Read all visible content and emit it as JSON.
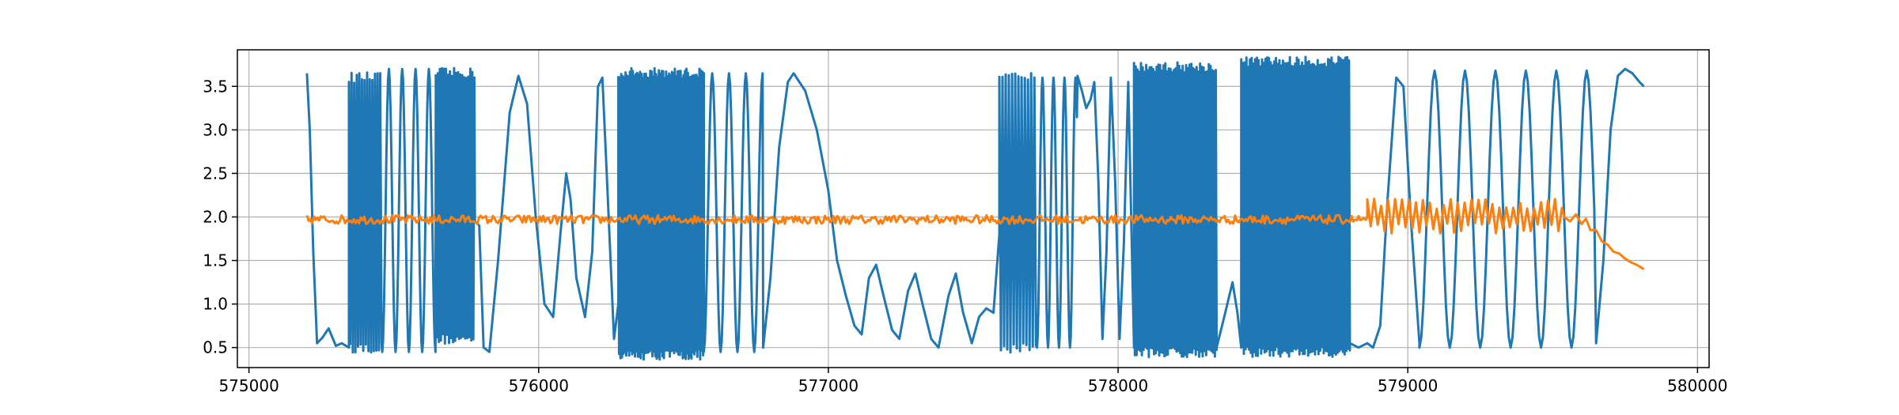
{
  "chart_data": {
    "type": "line",
    "title": "",
    "xlabel": "",
    "ylabel": "",
    "xlim": [
      574960,
      580040
    ],
    "ylim": [
      0.27,
      3.92
    ],
    "grid": true,
    "x_ticks": [
      575000,
      576000,
      577000,
      578000,
      579000,
      580000
    ],
    "x_tick_labels": [
      "575000",
      "576000",
      "577000",
      "578000",
      "579000",
      "580000"
    ],
    "y_ticks": [
      0.5,
      1.0,
      1.5,
      2.0,
      2.5,
      3.0,
      3.5
    ],
    "y_tick_labels": [
      "0.5",
      "1.0",
      "1.5",
      "2.0",
      "2.5",
      "3.0",
      "3.5"
    ],
    "series": [
      {
        "color": "#1f77b4",
        "segments": [
          {
            "kind": "points",
            "points": [
              [
                575200,
                3.65
              ],
              [
                575210,
                3.0
              ],
              [
                575222,
                1.6
              ],
              [
                575235,
                0.55
              ],
              [
                575255,
                0.62
              ],
              [
                575275,
                0.72
              ],
              [
                575300,
                0.52
              ],
              [
                575320,
                0.55
              ],
              [
                575345,
                0.5
              ]
            ]
          },
          {
            "kind": "burst",
            "x0": 575345,
            "x1": 575460,
            "period": 9,
            "low": 0.5,
            "high": 3.6
          },
          {
            "kind": "wave",
            "x0": 575460,
            "x1": 575645,
            "period": 46,
            "low": 0.45,
            "high": 3.7
          },
          {
            "kind": "burst",
            "x0": 575645,
            "x1": 575780,
            "period": 7,
            "low": 0.6,
            "high": 3.65
          },
          {
            "kind": "points",
            "points": [
              [
                575780,
                1.95
              ],
              [
                575795,
                1.9
              ],
              [
                575810,
                0.5
              ],
              [
                575830,
                0.45
              ],
              [
                575860,
                1.5
              ],
              [
                575900,
                3.2
              ],
              [
                575930,
                3.62
              ],
              [
                575960,
                3.3
              ],
              [
                575990,
                2.0
              ],
              [
                576020,
                1.0
              ],
              [
                576050,
                0.85
              ],
              [
                576075,
                1.8
              ],
              [
                576095,
                2.5
              ],
              [
                576110,
                2.2
              ],
              [
                576130,
                1.3
              ],
              [
                576160,
                0.85
              ],
              [
                576185,
                1.6
              ],
              [
                576205,
                3.5
              ],
              [
                576220,
                3.6
              ],
              [
                576235,
                2.5
              ],
              [
                576260,
                0.6
              ],
              [
                576275,
                1.0
              ]
            ]
          },
          {
            "kind": "burst",
            "x0": 576275,
            "x1": 576570,
            "period": 5,
            "low": 0.42,
            "high": 3.65
          },
          {
            "kind": "wave",
            "x0": 576570,
            "x1": 576775,
            "period": 58,
            "low": 0.45,
            "high": 3.65
          },
          {
            "kind": "points",
            "points": [
              [
                576775,
                0.5
              ],
              [
                576800,
                1.3
              ],
              [
                576830,
                2.8
              ],
              [
                576860,
                3.55
              ],
              [
                576880,
                3.65
              ],
              [
                576920,
                3.45
              ],
              [
                576960,
                3.0
              ],
              [
                577000,
                2.3
              ],
              [
                577030,
                1.5
              ],
              [
                577060,
                1.1
              ],
              [
                577090,
                0.75
              ],
              [
                577115,
                0.65
              ],
              [
                577140,
                1.3
              ],
              [
                577165,
                1.45
              ],
              [
                577190,
                1.1
              ],
              [
                577220,
                0.7
              ],
              [
                577245,
                0.6
              ],
              [
                577275,
                1.15
              ],
              [
                577300,
                1.35
              ],
              [
                577325,
                1.0
              ],
              [
                577355,
                0.6
              ],
              [
                577380,
                0.5
              ],
              [
                577415,
                1.1
              ],
              [
                577440,
                1.35
              ],
              [
                577465,
                0.9
              ],
              [
                577495,
                0.55
              ],
              [
                577520,
                0.85
              ],
              [
                577545,
                0.95
              ],
              [
                577570,
                0.9
              ],
              [
                577590,
                1.8
              ]
            ]
          },
          {
            "kind": "burst",
            "x0": 577590,
            "x1": 577720,
            "period": 11,
            "low": 0.5,
            "high": 3.6
          },
          {
            "kind": "wave",
            "x0": 577720,
            "x1": 577860,
            "period": 38,
            "low": 0.5,
            "high": 3.6
          },
          {
            "kind": "points",
            "points": [
              [
                577860,
                3.62
              ],
              [
                577875,
                3.45
              ],
              [
                577890,
                3.25
              ],
              [
                577905,
                3.35
              ],
              [
                577918,
                3.55
              ],
              [
                577932,
                2.4
              ],
              [
                577946,
                0.6
              ],
              [
                577960,
                1.6
              ],
              [
                577975,
                3.6
              ],
              [
                577990,
                2.4
              ],
              [
                578005,
                0.6
              ],
              [
                578020,
                1.7
              ],
              [
                578035,
                3.55
              ],
              [
                578055,
                0.5
              ]
            ]
          },
          {
            "kind": "burst",
            "x0": 578055,
            "x1": 578340,
            "period": 6,
            "low": 0.45,
            "high": 3.72
          },
          {
            "kind": "points",
            "points": [
              [
                578340,
                0.5
              ],
              [
                578370,
                0.9
              ],
              [
                578395,
                1.25
              ],
              [
                578412,
                0.9
              ],
              [
                578425,
                0.5
              ]
            ]
          },
          {
            "kind": "burst",
            "x0": 578425,
            "x1": 578800,
            "period": 6,
            "low": 0.45,
            "high": 3.78
          },
          {
            "kind": "points",
            "points": [
              [
                578800,
                0.55
              ],
              [
                578830,
                0.5
              ],
              [
                578860,
                0.55
              ],
              [
                578880,
                0.5
              ],
              [
                578905,
                0.75
              ],
              [
                578930,
                2.2
              ],
              [
                578960,
                3.6
              ],
              [
                578985,
                3.5
              ],
              [
                579010,
                2.0
              ],
              [
                579040,
                0.55
              ]
            ]
          },
          {
            "kind": "wave",
            "x0": 579040,
            "x1": 579650,
            "period": 105,
            "low": 0.5,
            "high": 3.68
          },
          {
            "kind": "points",
            "points": [
              [
                579650,
                0.55
              ],
              [
                579675,
                1.5
              ],
              [
                579700,
                3.0
              ],
              [
                579725,
                3.62
              ],
              [
                579750,
                3.7
              ],
              [
                579775,
                3.65
              ],
              [
                579800,
                3.55
              ],
              [
                579815,
                3.5
              ]
            ]
          }
        ]
      },
      {
        "color": "#ff7f0e",
        "segments": [
          {
            "kind": "noise",
            "x0": 575200,
            "x1": 578860,
            "period": 6,
            "center": 1.97,
            "amp": 0.05
          },
          {
            "kind": "burst",
            "x0": 578860,
            "x1": 579540,
            "period": 24,
            "low": 1.87,
            "high": 2.15
          },
          {
            "kind": "points",
            "points": [
              [
                579540,
                2.0
              ],
              [
                579560,
                1.95
              ],
              [
                579580,
                2.03
              ],
              [
                579600,
                1.92
              ],
              [
                579615,
                1.98
              ],
              [
                579630,
                1.85
              ],
              [
                579650,
                1.85
              ],
              [
                579670,
                1.72
              ],
              [
                579690,
                1.68
              ],
              [
                579710,
                1.6
              ],
              [
                579730,
                1.58
              ],
              [
                579750,
                1.52
              ],
              [
                579770,
                1.48
              ],
              [
                579790,
                1.45
              ],
              [
                579805,
                1.42
              ],
              [
                579815,
                1.4
              ]
            ]
          }
        ]
      }
    ]
  }
}
